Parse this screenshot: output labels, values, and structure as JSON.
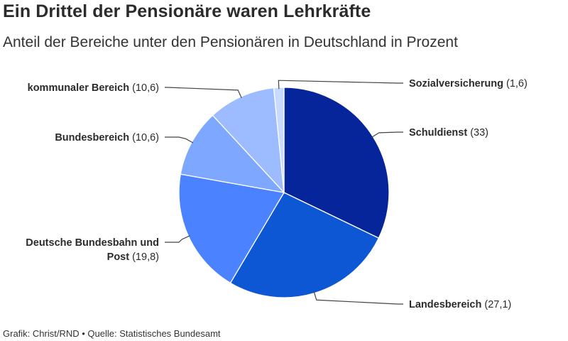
{
  "header": {
    "title": "Ein Drittel der Pensionäre waren Lehrkräfte",
    "subtitle": "Anteil der Bereiche unter den Pensionären in Deutschland in Prozent"
  },
  "footer": {
    "text": "Grafik: Christ/RND • Quelle: Statistisches Bundesamt"
  },
  "chart_data": {
    "type": "pie",
    "title": "Ein Drittel der Pensionäre waren Lehrkräfte",
    "subtitle": "Anteil der Bereiche unter den Pensionären in Deutschland in Prozent",
    "start": "12 o'clock",
    "direction": "clockwise",
    "slices": [
      {
        "name": "Schuldienst",
        "value": 33,
        "value_label": "(33)",
        "color": "#06259a"
      },
      {
        "name": "Landesbereich",
        "value": 27.1,
        "value_label": "(27,1)",
        "color": "#0d57d4"
      },
      {
        "name_lines": [
          "Deutsche Bundesbahn und",
          "Post"
        ],
        "name": "Deutsche Bundesbahn und Post",
        "value": 19.8,
        "value_label": "(19,8)",
        "color": "#4a82ff"
      },
      {
        "name": "Bundesbereich",
        "value": 10.6,
        "value_label": "(10,6)",
        "color": "#7ea7ff"
      },
      {
        "name": "kommunaler Bereich",
        "value": 10.6,
        "value_label": "(10,6)",
        "color": "#9dbcff"
      },
      {
        "name": "Sozialversicherung",
        "value": 1.6,
        "value_label": "(1,6)",
        "color": "#c9d9ff"
      }
    ]
  }
}
